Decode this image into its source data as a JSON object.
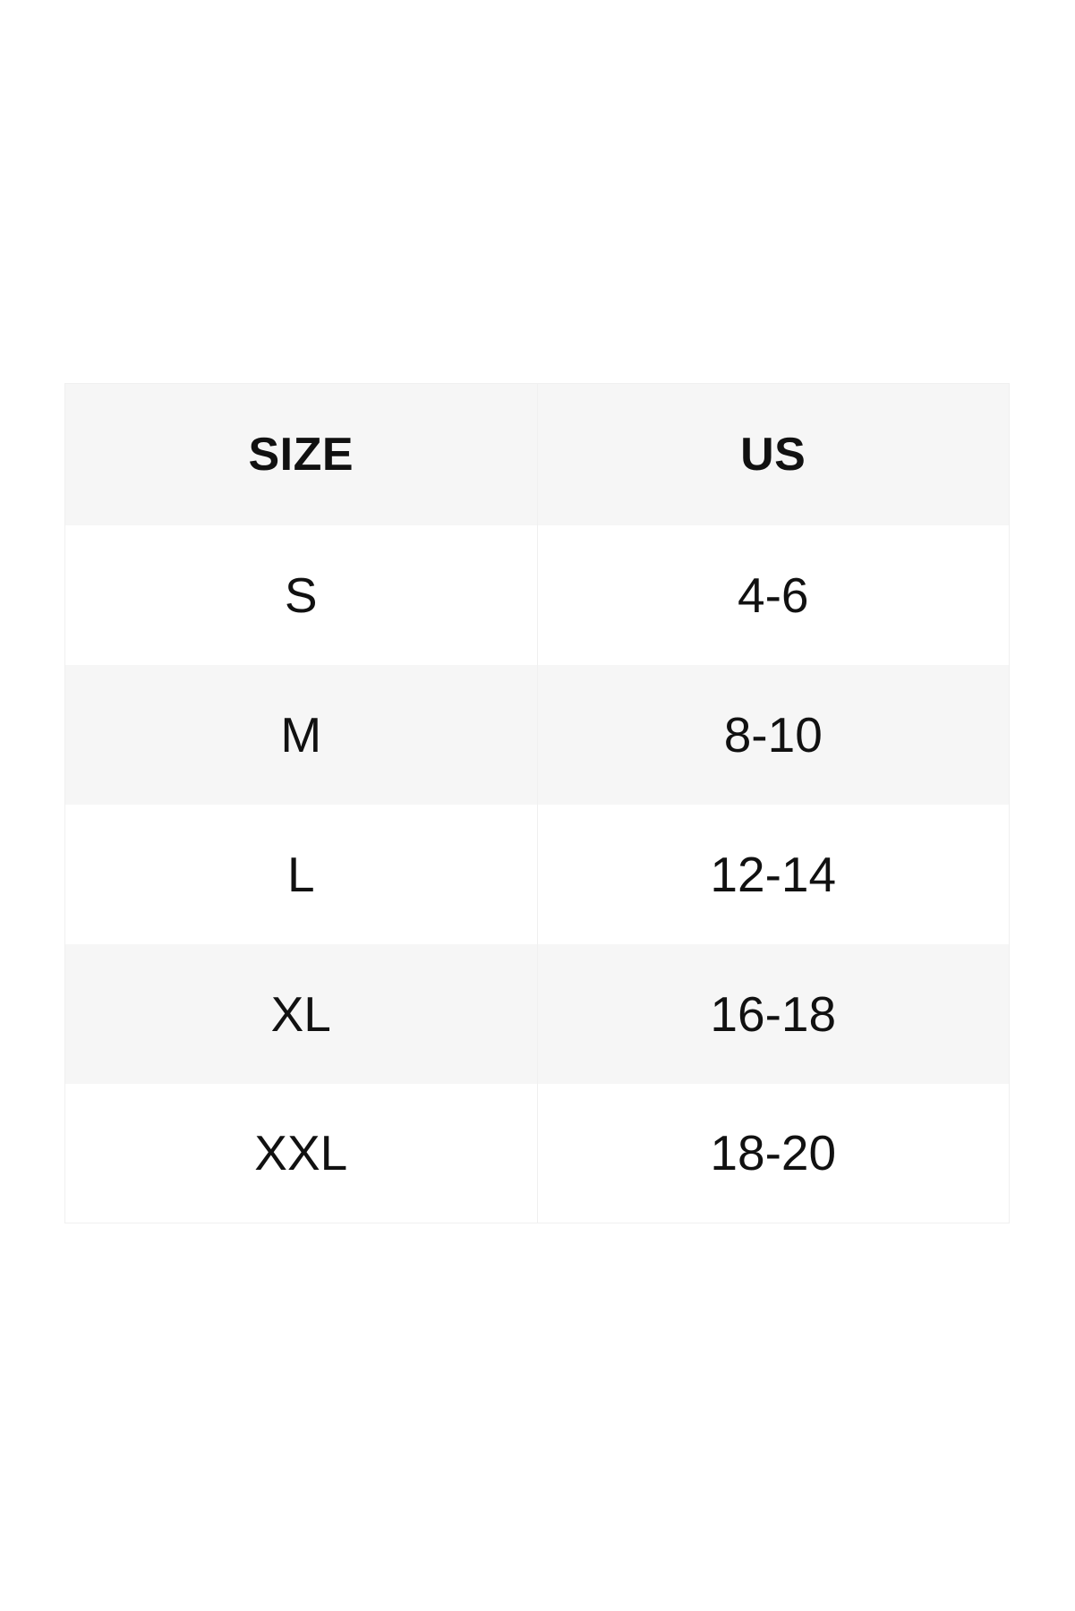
{
  "size_chart": {
    "columns": [
      {
        "label": "SIZE"
      },
      {
        "label": "US"
      }
    ],
    "rows": [
      {
        "size": "S",
        "us": "4-6"
      },
      {
        "size": "M",
        "us": "8-10"
      },
      {
        "size": "L",
        "us": "12-14"
      },
      {
        "size": "XL",
        "us": "16-18"
      },
      {
        "size": "XXL",
        "us": "18-20"
      }
    ],
    "colors": {
      "page_bg": "#ffffff",
      "header_bg": "#f6f6f6",
      "alt_row_bg": "#f6f6f6",
      "row_bg": "#ffffff",
      "border": "#f0f0f0",
      "text": "#111111"
    }
  }
}
